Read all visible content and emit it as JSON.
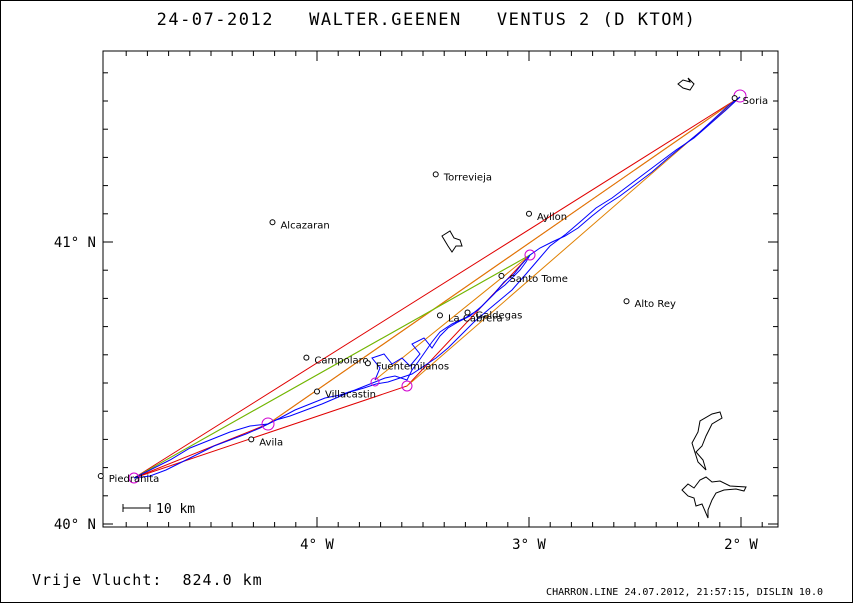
{
  "header": {
    "title": "24-07-2012   WALTER.GEENEN   VENTUS 2 (D KTOM)"
  },
  "axes": {
    "x_ticks": [
      {
        "label": "4° W",
        "lon": -4
      },
      {
        "label": "3° W",
        "lon": -3
      },
      {
        "label": "2° W",
        "lon": -2
      }
    ],
    "y_ticks": [
      {
        "label": "41° N",
        "lat": 41
      },
      {
        "label": "40° N",
        "lat": 40
      }
    ]
  },
  "scale_bar": {
    "label": "10 km"
  },
  "places": [
    {
      "name": "Soria",
      "lon": -2.03,
      "lat": 41.51
    },
    {
      "name": "Torrevieja",
      "lon": -3.44,
      "lat": 41.24
    },
    {
      "name": "Ayllon",
      "lon": -3.0,
      "lat": 41.1
    },
    {
      "name": "Alcazaran",
      "lon": -4.21,
      "lat": 41.07
    },
    {
      "name": "Santo Tome",
      "lon": -3.13,
      "lat": 40.88
    },
    {
      "name": "Alto Rey",
      "lon": -2.54,
      "lat": 40.79
    },
    {
      "name": "La Cabrera",
      "lon": -3.42,
      "lat": 40.74
    },
    {
      "name": "Galdegas",
      "lon": -3.29,
      "lat": 40.75
    },
    {
      "name": "Campolaro",
      "lon": -4.05,
      "lat": 40.59
    },
    {
      "name": "Fuentemilanos",
      "lon": -3.76,
      "lat": 40.57
    },
    {
      "name": "Villacastin",
      "lon": -4.0,
      "lat": 40.47
    },
    {
      "name": "Avila",
      "lon": -4.31,
      "lat": 40.3
    },
    {
      "name": "Piedrahita",
      "lon": -5.02,
      "lat": 40.17
    }
  ],
  "footer": {
    "distance_text": "Vrije Vlucht:  824.0 km",
    "program_text": "CHARRON.LINE 24.07.2012, 21:57:15, DISLIN 10.0"
  },
  "colors": {
    "track": "#0000ff",
    "task_red": "#e00000",
    "task_orange": "#e08000",
    "task_green": "#60d000",
    "turnpoint": "#d000d0"
  }
}
